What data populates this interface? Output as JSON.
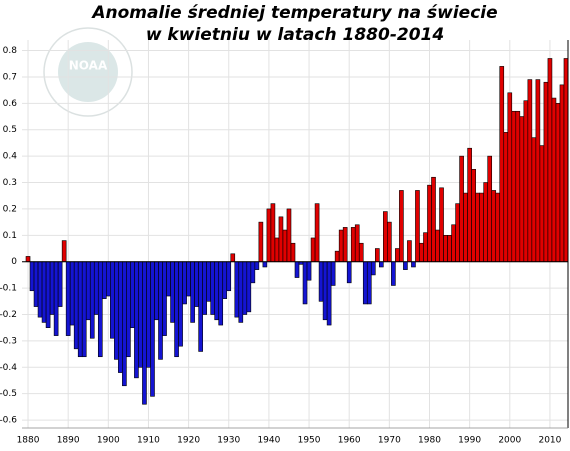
{
  "chart_data": {
    "type": "bar",
    "title": [
      "Anomalie średniej temperatury na świecie",
      "w kwietniu w latach 1880-2014"
    ],
    "logo": "NOAA",
    "x": [
      1880,
      1881,
      1882,
      1883,
      1884,
      1885,
      1886,
      1887,
      1888,
      1889,
      1890,
      1891,
      1892,
      1893,
      1894,
      1895,
      1896,
      1897,
      1898,
      1899,
      1900,
      1901,
      1902,
      1903,
      1904,
      1905,
      1906,
      1907,
      1908,
      1909,
      1910,
      1911,
      1912,
      1913,
      1914,
      1915,
      1916,
      1917,
      1918,
      1919,
      1920,
      1921,
      1922,
      1923,
      1924,
      1925,
      1926,
      1927,
      1928,
      1929,
      1930,
      1931,
      1932,
      1933,
      1934,
      1935,
      1936,
      1937,
      1938,
      1939,
      1940,
      1941,
      1942,
      1943,
      1944,
      1945,
      1946,
      1947,
      1948,
      1949,
      1950,
      1951,
      1952,
      1953,
      1954,
      1955,
      1956,
      1957,
      1958,
      1959,
      1960,
      1961,
      1962,
      1963,
      1964,
      1965,
      1966,
      1967,
      1968,
      1969,
      1970,
      1971,
      1972,
      1973,
      1974,
      1975,
      1976,
      1977,
      1978,
      1979,
      1980,
      1981,
      1982,
      1983,
      1984,
      1985,
      1986,
      1987,
      1988,
      1989,
      1990,
      1991,
      1992,
      1993,
      1994,
      1995,
      1996,
      1997,
      1998,
      1999,
      2000,
      2001,
      2002,
      2003,
      2004,
      2005,
      2006,
      2007,
      2008,
      2009,
      2010,
      2011,
      2012,
      2013,
      2014
    ],
    "values": [
      0.02,
      -0.11,
      -0.17,
      -0.21,
      -0.23,
      -0.25,
      -0.2,
      -0.28,
      -0.17,
      0.08,
      -0.28,
      -0.24,
      -0.33,
      -0.36,
      -0.36,
      -0.22,
      -0.29,
      -0.2,
      -0.36,
      -0.14,
      -0.13,
      -0.29,
      -0.37,
      -0.42,
      -0.47,
      -0.36,
      -0.25,
      -0.44,
      -0.4,
      -0.54,
      -0.4,
      -0.51,
      -0.22,
      -0.37,
      -0.28,
      -0.13,
      -0.23,
      -0.36,
      -0.32,
      -0.16,
      -0.13,
      -0.23,
      -0.17,
      -0.34,
      -0.2,
      -0.15,
      -0.2,
      -0.22,
      -0.24,
      -0.14,
      -0.11,
      0.03,
      -0.21,
      -0.23,
      -0.2,
      -0.19,
      -0.08,
      -0.03,
      0.15,
      -0.02,
      0.2,
      0.22,
      0.09,
      0.17,
      0.12,
      0.2,
      0.07,
      -0.06,
      -0.01,
      -0.16,
      -0.07,
      0.09,
      0.22,
      -0.15,
      -0.22,
      -0.24,
      -0.09,
      0.04,
      0.12,
      0.13,
      -0.08,
      0.13,
      0.14,
      0.07,
      -0.16,
      -0.16,
      -0.05,
      0.05,
      -0.02,
      0.19,
      0.15,
      -0.09,
      0.05,
      0.27,
      -0.03,
      0.08,
      -0.02,
      0.27,
      0.07,
      0.11,
      0.29,
      0.32,
      0.12,
      0.28,
      0.1,
      0.1,
      0.14,
      0.22,
      0.4,
      0.26,
      0.43,
      0.35,
      0.26,
      0.26,
      0.3,
      0.4,
      0.27,
      0.26,
      0.74,
      0.49,
      0.64,
      0.57,
      0.57,
      0.55,
      0.61,
      0.69,
      0.47,
      0.69,
      0.44,
      0.68,
      0.77,
      0.62,
      0.6,
      0.67,
      0.77
    ],
    "pos_color": "#e00000",
    "neg_color": "#1414d2",
    "xlim": [
      1878.5,
      2014.5
    ],
    "xticks": [
      1880,
      1890,
      1900,
      1910,
      1920,
      1930,
      1940,
      1950,
      1960,
      1970,
      1980,
      1990,
      2000,
      2010
    ],
    "ylim": [
      -0.63,
      0.84
    ],
    "yticks": [
      -0.6,
      -0.5,
      -0.4,
      -0.3,
      -0.2,
      -0.1,
      0,
      0.1,
      0.2,
      0.3,
      0.4,
      0.5,
      0.6,
      0.7,
      0.8
    ],
    "grid": true
  }
}
